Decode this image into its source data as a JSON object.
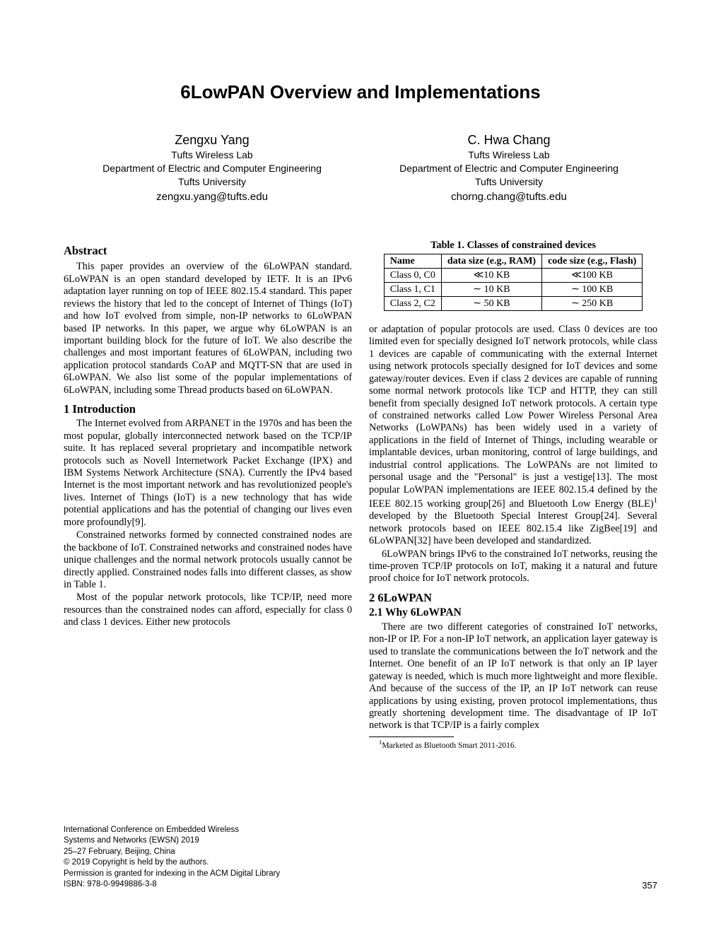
{
  "title": "6LowPAN Overview and Implementations",
  "authors": [
    {
      "name": "Zengxu Yang",
      "lab": "Tufts Wireless Lab",
      "dept": "Department of Electric and Computer Engineering",
      "univ": "Tufts University",
      "email": "zengxu.yang@tufts.edu"
    },
    {
      "name": "C. Hwa Chang",
      "lab": "Tufts Wireless Lab",
      "dept": "Department of Electric and Computer Engineering",
      "univ": "Tufts University",
      "email": "chorng.chang@tufts.edu"
    }
  ],
  "abstract_h": "Abstract",
  "abstract_p": "This paper provides an overview of the 6LoWPAN standard. 6LoWPAN is an open standard developed by IETF. It is an IPv6 adaptation layer running on top of IEEE 802.15.4 standard. This paper reviews the history that led to the concept of Internet of Things (IoT) and how IoT evolved from simple, non-IP networks to 6LoWPAN based IP networks. In this paper, we argue why 6LoWPAN is an important building block for the future of IoT. We also describe the challenges and most important features of 6LoWPAN, including two application protocol standards CoAP and MQTT-SN that are used in 6LoWPAN. We also list some of the popular implementations of 6LoWPAN, including some Thread products based on 6LoWPAN.",
  "sec1_h": "1   Introduction",
  "sec1_p1": "The Internet evolved from ARPANET in the 1970s and has been the most popular, globally interconnected network based on the TCP/IP suite. It has replaced several proprietary and incompatible network protocols such as Novell Internetwork Packet Exchange (IPX) and IBM Systems Network Architecture (SNA). Currently the IPv4 based Internet is the most important network and has revolutionized people's lives. Internet of Things (IoT) is a new technology that has wide potential applications and has the potential of changing our lives even more profoundly[9].",
  "sec1_p2": "Constrained networks formed by connected constrained nodes are the backbone of IoT. Constrained networks and constrained nodes have unique challenges and the normal network protocols usually cannot be directly applied. Constrained nodes falls into different classes, as show in Table 1.",
  "sec1_p3": "Most of the popular network protocols, like TCP/IP, need more resources than the constrained nodes can afford, especially for class 0 and class 1 devices. Either new protocols",
  "table": {
    "caption": "Table 1. Classes of constrained devices",
    "headers": [
      "Name",
      "data size (e.g., RAM)",
      "code size (e.g., Flash)"
    ],
    "rows": [
      [
        "Class 0, C0",
        "≪10 KB",
        "≪100 KB"
      ],
      [
        "Class 1, C1",
        "∼ 10 KB",
        "∼ 100 KB"
      ],
      [
        "Class 2, C2",
        "∼ 50 KB",
        "∼ 250 KB"
      ]
    ]
  },
  "col2_p1a": "or adaptation of popular protocols are used. Class 0 devices are too limited even for specially designed IoT network protocols, while class 1 devices are capable of communicating with the external Internet using network protocols specially designed for IoT devices and some gateway/router devices. Even if class 2 devices are capable of running some normal network protocols like TCP and HTTP, they can still benefit from specially designed IoT network protocols. A certain type of constrained networks called Low Power Wireless Personal Area Networks (LoWPANs) has been widely used in a variety of applications in the field of Internet of Things, including wearable or implantable devices, urban monitoring, control of large buildings, and industrial control applications. The LoWPANs are not limited to personal usage and the \"Personal\" is just a vestige[13]. The most popular LoWPAN implementations are IEEE 802.15.4 defined by the IEEE 802.15 working group[26] and Bluetooth Low Energy (BLE)",
  "col2_p1b": " developed by the Bluetooth Special Interest Group[24]. Several network protocols based on IEEE 802.15.4 like ZigBee[19] and 6LoWPAN[32] have been developed and standardized.",
  "col2_p2": "6LoWPAN brings IPv6 to the constrained IoT networks, reusing the time-proven TCP/IP protocols on IoT, making it a natural and future proof choice for IoT network protocols.",
  "sec2_h": "2   6LoWPAN",
  "sec21_h": "2.1   Why 6LoWPAN",
  "sec21_p1": "There are two different categories of constrained IoT networks, non-IP or IP. For a non-IP IoT network, an application layer gateway is used to translate the communications between the IoT network and the Internet. One benefit of an IP IoT network is that only an IP layer gateway is needed, which is much more lightweight and more flexible. And because of the success of the IP, an IP IoT network can reuse applications by using existing, proven protocol implementations, thus greatly shortening development time. The disadvantage of IP IoT network is that TCP/IP is a fairly complex",
  "footnote_marker": "1",
  "footnote_text": "Marketed as Bluetooth Smart 2011-2016.",
  "conf": {
    "l1": "International Conference on Embedded Wireless",
    "l2": "Systems and Networks (EWSN) 2019",
    "l3": "25–27 February, Beijing, China",
    "l4": "© 2019 Copyright is held by the authors.",
    "l5": "Permission is granted for indexing in the ACM Digital Library",
    "l6": "ISBN: 978-0-9949886-3-8"
  },
  "pagenum": "357"
}
